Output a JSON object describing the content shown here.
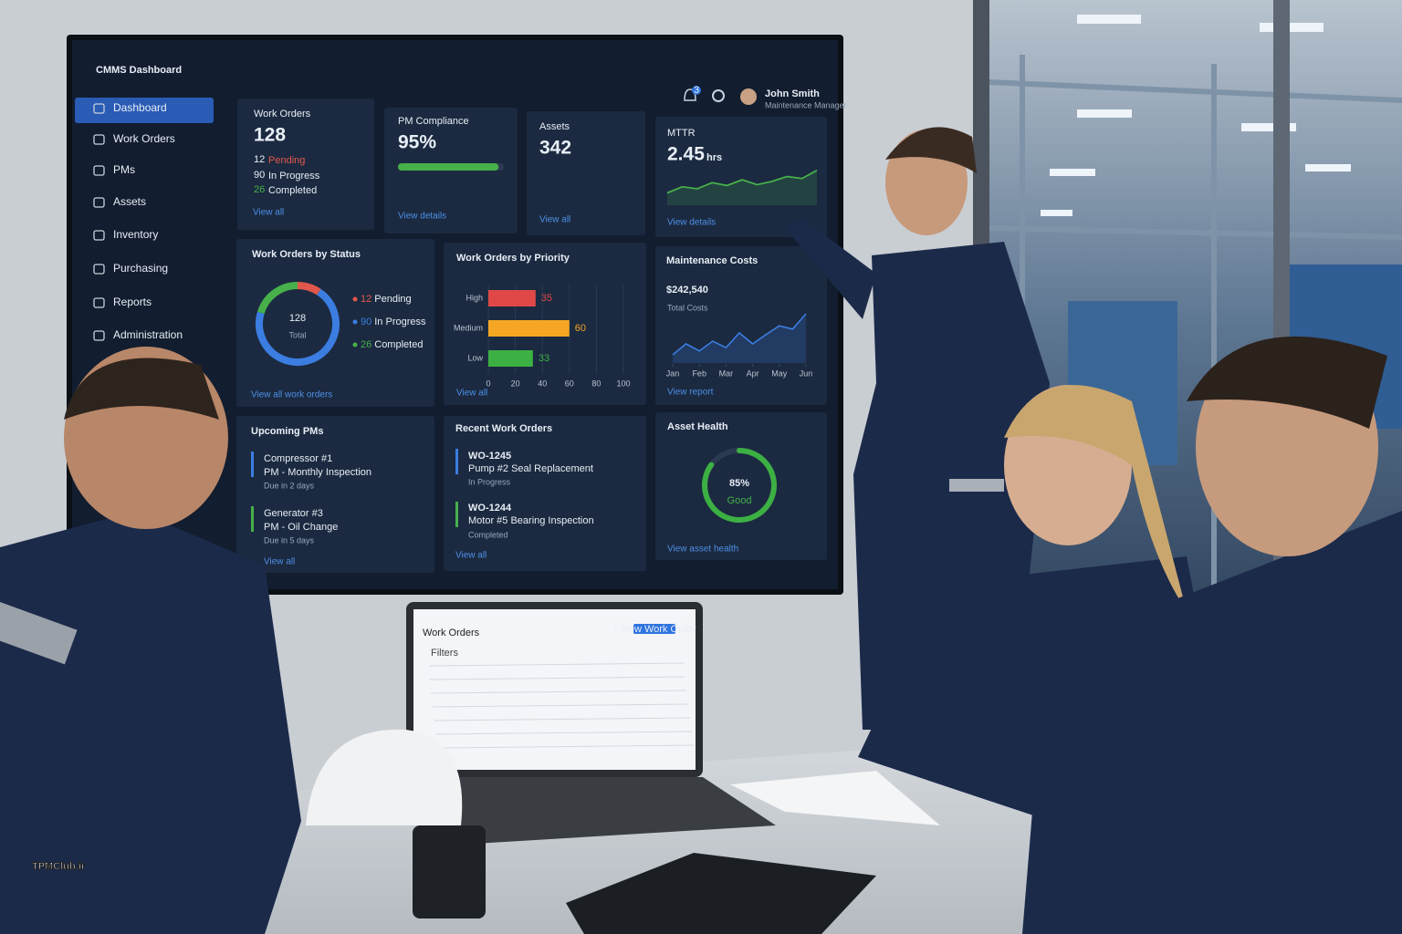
{
  "dashboard": {
    "title": "CMMS Dashboard",
    "sidebar": [
      "Dashboard",
      "Work Orders",
      "PMs",
      "Assets",
      "Inventory",
      "Purchasing",
      "Reports",
      "Administration"
    ],
    "header": {
      "notifications": 3,
      "user_name": "John Smith",
      "user_role": "Maintenance Manager"
    },
    "work_orders_card": {
      "title": "Work Orders",
      "total": 128,
      "rows": [
        {
          "count": 12,
          "label": "Pending"
        },
        {
          "count": 90,
          "label": "In Progress"
        },
        {
          "count": 26,
          "label": "Completed"
        }
      ],
      "link": "View all"
    },
    "pm_compliance": {
      "title": "PM Compliance",
      "value_label": "95%",
      "value": 95,
      "link": "View details"
    },
    "assets": {
      "title": "Assets",
      "value": 342,
      "link": "View all"
    },
    "mttr": {
      "title": "MTTR",
      "value": 2.45,
      "unit": "hrs",
      "trend": [
        30,
        45,
        40,
        55,
        48,
        62,
        50,
        58,
        70,
        65,
        85
      ],
      "ylim": [
        0,
        100
      ],
      "link": "View details"
    },
    "status_chart": {
      "title": "Work Orders by Status",
      "total": 128,
      "total_label": "Total",
      "segments": [
        {
          "name": "Pending",
          "value": 12,
          "color": "#e2574c"
        },
        {
          "name": "In Progress",
          "value": 90,
          "color": "#3b7de0"
        },
        {
          "name": "Completed",
          "value": 26,
          "color": "#47b04b"
        }
      ],
      "link": "View all work orders"
    },
    "priority_chart": {
      "title": "Work Orders by Priority",
      "categories": [
        "High",
        "Medium",
        "Low"
      ],
      "values": [
        35,
        60,
        33
      ],
      "colors": [
        "#e04848",
        "#f5a623",
        "#3cb043"
      ],
      "xlim": [
        0,
        100
      ],
      "xticks": [
        0,
        20,
        40,
        60,
        80,
        100
      ],
      "link": "View all"
    },
    "costs_chart": {
      "title": "Maintenance Costs",
      "total_label": "$242,540",
      "subtitle": "Total Costs",
      "x": [
        0,
        0.5,
        1,
        1.5,
        2,
        2.5,
        3,
        3.5,
        4,
        4.5,
        5
      ],
      "values": [
        15,
        35,
        22,
        40,
        28,
        55,
        35,
        52,
        68,
        62,
        90
      ],
      "xlim": [
        0,
        5
      ],
      "ylim": [
        0,
        100
      ],
      "xticks": [
        {
          "value": 0,
          "label": "Jan"
        },
        {
          "value": 1,
          "label": "Feb"
        },
        {
          "value": 2,
          "label": "Mar"
        },
        {
          "value": 3,
          "label": "Apr"
        },
        {
          "value": 4,
          "label": "May"
        },
        {
          "value": 5,
          "label": "Jun"
        }
      ],
      "link": "View report"
    },
    "upcoming_pms": {
      "title": "Upcoming PMs",
      "items": [
        {
          "name": "Compressor #1",
          "task": "PM - Monthly Inspection",
          "due": "Due in 2 days"
        },
        {
          "name": "Generator #3",
          "task": "PM - Oil Change",
          "due": "Due in 5 days"
        }
      ],
      "link": "View all"
    },
    "recent_work_orders": {
      "title": "Recent Work Orders",
      "items": [
        {
          "id": "WO-1245",
          "description": "Pump #2 Seal Replacement",
          "status": "In Progress"
        },
        {
          "id": "WO-1244",
          "description": "Motor #5 Bearing Inspection",
          "status": "Completed"
        }
      ],
      "link": "View all"
    },
    "asset_health": {
      "title": "Asset Health",
      "value_label": "85%",
      "value": 85,
      "status": "Good",
      "link": "View asset health"
    }
  },
  "laptop": {
    "title": "Work Orders",
    "button": "+ New Work Order",
    "filters": "Filters"
  },
  "watermark": "TPMClub.ir"
}
